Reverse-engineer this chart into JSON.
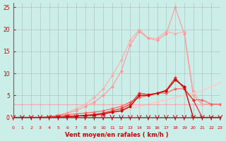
{
  "x": [
    0,
    1,
    2,
    3,
    4,
    5,
    6,
    7,
    8,
    9,
    10,
    11,
    12,
    13,
    14,
    15,
    16,
    17,
    18,
    19,
    20,
    21,
    22,
    23
  ],
  "line_flat_pink": [
    3,
    3,
    3,
    3,
    3,
    3,
    3,
    3,
    3,
    3,
    3,
    3,
    3,
    3,
    3,
    3,
    3,
    3,
    3,
    3,
    3,
    3,
    3,
    3
  ],
  "line_slope1": [
    0,
    0,
    0,
    0,
    0,
    0,
    0,
    0,
    0,
    0,
    0.5,
    1,
    1.5,
    2,
    2.5,
    3,
    3.5,
    4,
    4.5,
    5,
    5.5,
    6,
    7,
    8
  ],
  "line_slope2": [
    0,
    0,
    0,
    0,
    0,
    0,
    0,
    0,
    0,
    0,
    0.5,
    1,
    1.5,
    2,
    2.5,
    3,
    3.5,
    4,
    4.5,
    5,
    5.5,
    6,
    7,
    8
  ],
  "line_dark1": [
    0,
    0,
    0,
    0,
    0,
    0.1,
    0.2,
    0.3,
    0.4,
    0.5,
    0.8,
    1.2,
    1.5,
    2.5,
    5,
    5,
    5.5,
    6,
    8.5,
    7,
    0,
    0,
    0,
    0
  ],
  "line_dark2": [
    0,
    0,
    0,
    0,
    0,
    0.1,
    0.2,
    0.3,
    0.5,
    0.7,
    1.0,
    1.5,
    2.0,
    3.0,
    5.5,
    5.2,
    5.5,
    6.2,
    9,
    6.5,
    4,
    0,
    0,
    0
  ],
  "line_dark3": [
    0,
    0,
    0,
    0,
    0.2,
    0.4,
    0.6,
    0.8,
    1.0,
    1.2,
    1.5,
    2.0,
    2.5,
    3.5,
    4.5,
    5.0,
    5.5,
    5.5,
    6.5,
    6.5,
    4,
    4,
    3,
    3
  ],
  "line_light_peak": [
    0,
    0,
    0,
    0,
    0,
    0.5,
    1,
    1.5,
    2.5,
    3.5,
    5,
    7,
    10.5,
    16.5,
    19.5,
    18,
    17.5,
    19,
    25,
    19,
    5,
    3,
    3,
    3
  ],
  "line_lighter_peak": [
    0,
    0,
    0,
    0,
    0,
    0.5,
    1,
    2,
    3,
    4.5,
    6.5,
    9.5,
    13,
    17.5,
    20,
    18,
    18,
    19.5,
    19,
    19.5,
    6,
    3,
    3,
    3
  ],
  "background_color": "#cceee8",
  "grid_color": "#aaaaaa",
  "xlabel": "Vent moyen/en rafales ( km/h )",
  "ylim": [
    0,
    26
  ],
  "xlim": [
    0,
    23
  ],
  "yticks": [
    0,
    5,
    10,
    15,
    20,
    25
  ],
  "xticks": [
    0,
    1,
    2,
    3,
    4,
    5,
    6,
    7,
    8,
    9,
    10,
    11,
    12,
    13,
    14,
    15,
    16,
    17,
    18,
    19,
    20,
    21,
    22,
    23
  ]
}
